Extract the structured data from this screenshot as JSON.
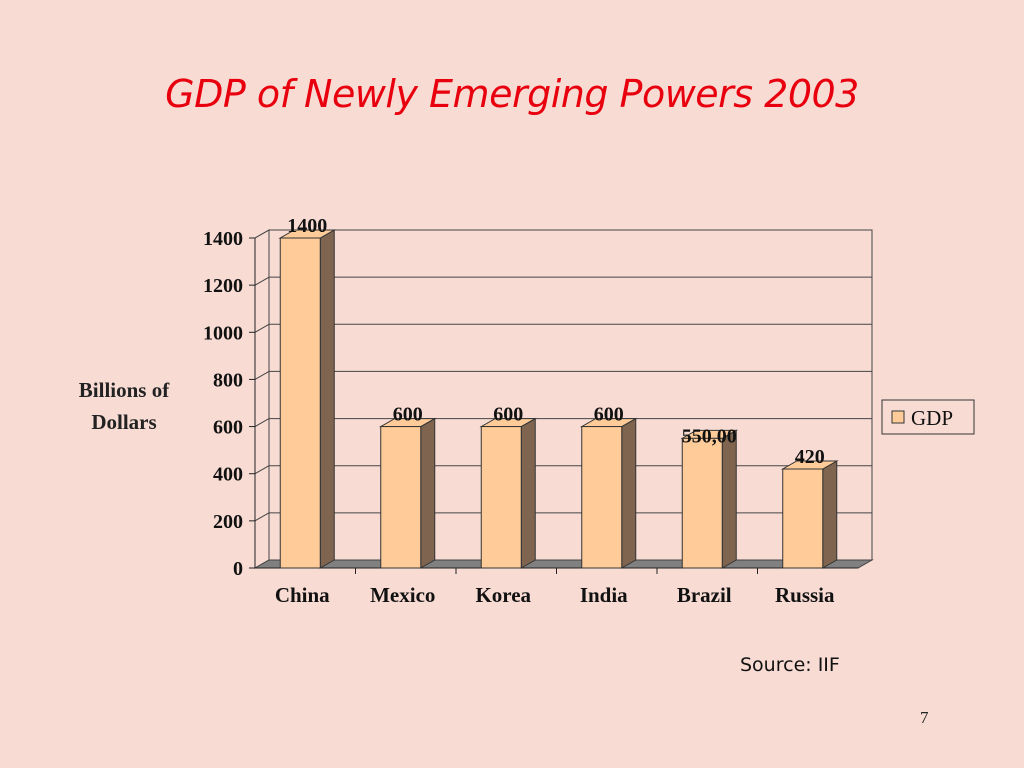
{
  "slide": {
    "title": "GDP of Newly Emerging Powers 2003",
    "source": "Source: IIF",
    "page_number": "7"
  },
  "colors": {
    "background": "#f8dcd4",
    "title": "#e8000e",
    "bar_front": "#ffcc99",
    "bar_side": "#7f6550",
    "floor": "#808080"
  },
  "chart_data": {
    "type": "bar",
    "title": "GDP of Newly Emerging Powers 2003",
    "ylabel_lines": [
      "Billions of",
      "Dollars"
    ],
    "xlabel": "",
    "categories": [
      "China",
      "Mexico",
      "Korea",
      "India",
      "Brazil",
      "Russia"
    ],
    "series": [
      {
        "name": "GDP",
        "values": [
          1400,
          600,
          600,
          600,
          550,
          420
        ],
        "labels": [
          "1400",
          "600",
          "600",
          "600",
          "550,00",
          "420"
        ]
      }
    ],
    "ylim": [
      0,
      1400
    ],
    "yticks": [
      0,
      200,
      400,
      600,
      800,
      1000,
      1200,
      1400
    ],
    "grid": true,
    "legend": "right",
    "style": "3d-column"
  }
}
